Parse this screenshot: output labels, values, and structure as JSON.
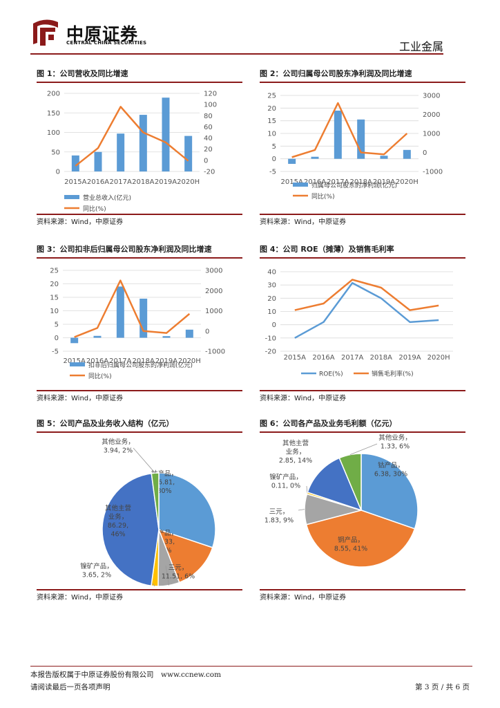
{
  "header": {
    "brand_cn": "中原证券",
    "brand_en": "CENTRAL CHINA SECURITIES",
    "section": "工业金属",
    "colors": {
      "brand_red": "#8b1a1a",
      "rule": "#8b1a1a"
    }
  },
  "source_text": "资料来源：Wind，中原证券",
  "colors": {
    "blue": "#5b9bd5",
    "orange": "#ed7d31",
    "gray": "#a5a5a5",
    "gold": "#ffc000",
    "darkblue": "#4472c4",
    "green": "#70ad47"
  },
  "chart_data": [
    {
      "id": "fig1",
      "type": "bar",
      "title": "图 1：公司营收及同比增速",
      "categories": [
        "2015A",
        "2016A",
        "2017A",
        "2018A",
        "2019A",
        "2020H"
      ],
      "series": [
        {
          "name": "营业总收入（亿元）",
          "kind": "bar",
          "axis": "left",
          "values": [
            41,
            50,
            97,
            145,
            189,
            91
          ]
        },
        {
          "name": "同比(%)",
          "kind": "line",
          "axis": "right",
          "values": [
            -10,
            22,
            96,
            50,
            32,
            -1
          ]
        }
      ],
      "left_axis": {
        "min": 0,
        "max": 200,
        "ticks": [
          0,
          50,
          100,
          150,
          200
        ]
      },
      "right_axis": {
        "min": -20,
        "max": 120,
        "ticks": [
          -20,
          0,
          20,
          40,
          60,
          80,
          100,
          120
        ]
      },
      "legend": [
        "营业总收入(亿元)",
        "同比(%)"
      ],
      "legend_position": "bottom"
    },
    {
      "id": "fig2",
      "type": "bar",
      "title": "图 2：公司归属母公司股东净利润及同比增速",
      "categories": [
        "2015A",
        "2016A",
        "2017A",
        "2018A",
        "2019A",
        "2020H"
      ],
      "series": [
        {
          "name": "归属母公司股东的净利润(亿元)",
          "kind": "bar",
          "axis": "left",
          "values": [
            -2,
            0.8,
            19,
            15.5,
            1.2,
            3.5
          ]
        },
        {
          "name": "同比(%)",
          "kind": "line",
          "axis": "right",
          "values": [
            -250,
            130,
            2600,
            0,
            -100,
            1000
          ]
        }
      ],
      "left_axis": {
        "min": -5,
        "max": 25,
        "ticks": [
          -5,
          0,
          5,
          10,
          15,
          20,
          25
        ]
      },
      "right_axis": {
        "min": -1000,
        "max": 3000,
        "ticks": [
          -1000,
          0,
          1000,
          2000,
          3000
        ]
      },
      "legend": [
        "归属母公司股东的净利润(亿元)",
        "同比(%)"
      ],
      "legend_position": "bottom"
    },
    {
      "id": "fig3",
      "type": "bar",
      "title": "图 3：公司扣非后归属母公司股东净利润及同比增速",
      "categories": [
        "2015A",
        "2016A",
        "2017A",
        "2018A",
        "2019A",
        "2020H"
      ],
      "series": [
        {
          "name": "扣非后归属母公司股东的净利润(亿元)",
          "kind": "bar",
          "axis": "left",
          "values": [
            -2,
            0.7,
            19,
            14.5,
            0.6,
            3
          ]
        },
        {
          "name": "同比(%)",
          "kind": "line",
          "axis": "right",
          "values": [
            -300,
            150,
            2500,
            0,
            -100,
            850
          ]
        }
      ],
      "left_axis": {
        "min": -5,
        "max": 25,
        "ticks": [
          -5,
          0,
          5,
          10,
          15,
          20,
          25
        ]
      },
      "right_axis": {
        "min": -1000,
        "max": 3000,
        "ticks": [
          -1000,
          0,
          1000,
          2000,
          3000
        ]
      },
      "legend": [
        "扣非后归属母公司股东的净利润(亿元)",
        "同比(%)"
      ],
      "legend_position": "bottom"
    },
    {
      "id": "fig4",
      "type": "line",
      "title": "图 4：公司 ROE（摊薄）及销售毛利率",
      "categories": [
        "2015A",
        "2016A",
        "2017A",
        "2018A",
        "2019A",
        "2020H"
      ],
      "series": [
        {
          "name": "ROE(%)",
          "values": [
            -10,
            2,
            31.5,
            20,
            2,
            3.5
          ]
        },
        {
          "name": "销售毛利率(%)",
          "values": [
            11,
            16,
            34,
            28,
            11,
            14.5
          ]
        }
      ],
      "y_axis": {
        "min": -20,
        "max": 40,
        "ticks": [
          -20,
          -10,
          0,
          10,
          20,
          30,
          40
        ]
      },
      "legend": [
        "ROE(%)",
        "销售毛利率(%)"
      ],
      "legend_position": "bottom"
    },
    {
      "id": "fig5",
      "type": "pie",
      "title": "图 5：公司产品及业务收入结构（亿元）",
      "slices": [
        {
          "name": "钴产品",
          "value": 56.81,
          "pct": "30%",
          "label_lines": [
            "钴产品，",
            "56.81,",
            "30%"
          ]
        },
        {
          "name": "铜产品",
          "value": 26.33,
          "pct": "14%",
          "label_lines": [
            "铜产品，",
            "26.33,",
            "14%"
          ]
        },
        {
          "name": "三元",
          "value": 11.51,
          "pct": "6%",
          "label_lines": [
            "三元，",
            "11.51, 6%"
          ]
        },
        {
          "name": "镍矿产品",
          "value": 3.65,
          "pct": "2%",
          "label_lines": [
            "镍矿产品，",
            "3.65, 2%"
          ]
        },
        {
          "name": "其他主营业务",
          "value": 86.29,
          "pct": "46%",
          "label_lines": [
            "其他主营",
            "业务，",
            "86.29,",
            "46%"
          ]
        },
        {
          "name": "其他业务",
          "value": 3.94,
          "pct": "2%",
          "label_lines": [
            "其他业务，",
            "3.94, 2%"
          ]
        }
      ]
    },
    {
      "id": "fig6",
      "type": "pie",
      "title": "图 6：公司各产品及业务毛利额（亿元）",
      "slices": [
        {
          "name": "钴产品",
          "value": 6.38,
          "pct": "30%",
          "label_lines": [
            "钴产品，",
            "6.38, 30%"
          ]
        },
        {
          "name": "铜产品",
          "value": 8.55,
          "pct": "41%",
          "label_lines": [
            "铜产品，",
            "8.55, 41%"
          ]
        },
        {
          "name": "三元",
          "value": 1.83,
          "pct": "9%",
          "label_lines": [
            "三元，",
            "1.83, 9%"
          ]
        },
        {
          "name": "镍矿产品",
          "value": 0.11,
          "pct": "0%",
          "label_lines": [
            "镍矿产品，",
            "0.11, 0%"
          ]
        },
        {
          "name": "其他主营业务",
          "value": 2.85,
          "pct": "14%",
          "label_lines": [
            "其他主营",
            "业务，",
            "2.85, 14%"
          ]
        },
        {
          "name": "其他业务",
          "value": 1.33,
          "pct": "6%",
          "label_lines": [
            "其他业务，",
            "1.33, 6%"
          ]
        }
      ]
    }
  ],
  "footer": {
    "copyright": "本报告版权属于中原证券股份有限公司　www.ccnew.com",
    "read": "请阅读最后一页各项声明",
    "page": "第 3 页 / 共 6 页"
  }
}
